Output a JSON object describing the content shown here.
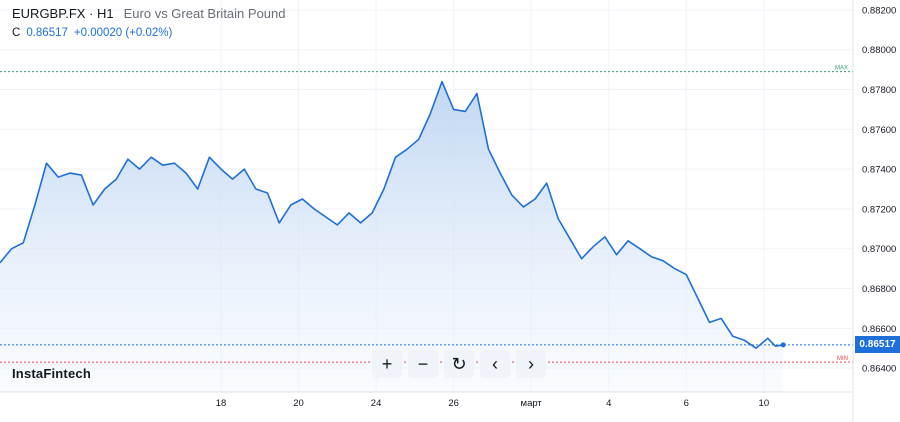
{
  "header": {
    "symbol": "EURGBP.FX · H1",
    "description": "Euro vs Great Britain Pound",
    "close_label": "C",
    "close_value": "0.86517",
    "change": "+0.00020 (+0.02%)"
  },
  "brand": "InstaFintech",
  "toolbar": {
    "zoom_in": "+",
    "zoom_out": "−",
    "reset": "↻",
    "back": "‹",
    "forward": "›"
  },
  "current_price_label": "0.86517",
  "max_label": "MAX",
  "min_label": "MIN",
  "colors": {
    "line": "#1e6fd9",
    "fill_top": "#bcd4f2",
    "max_line": "#2e9e6b",
    "min_line": "#e04b4b"
  },
  "chart_data": {
    "type": "area",
    "y_ticks": [
      "0.88200",
      "0.88000",
      "0.87800",
      "0.87600",
      "0.87400",
      "0.87200",
      "0.87000",
      "0.86800",
      "0.86600",
      "0.86400"
    ],
    "y_tick_values": [
      0.882,
      0.88,
      0.878,
      0.876,
      0.874,
      0.872,
      0.87,
      0.868,
      0.866,
      0.864
    ],
    "ylim": [
      0.8628,
      0.8825
    ],
    "x_ticks": [
      "18",
      "20",
      "24",
      "26",
      "март",
      "4",
      "6",
      "10"
    ],
    "x_tick_positions": [
      5.7,
      7.7,
      9.7,
      11.7,
      13.7,
      15.7,
      17.7,
      19.7
    ],
    "xlim": [
      0,
      22
    ],
    "max_level": 0.8789,
    "min_level": 0.8643,
    "current_level": 0.86517,
    "x": [
      0.0,
      0.3,
      0.6,
      0.9,
      1.2,
      1.5,
      1.8,
      2.1,
      2.4,
      2.7,
      3.0,
      3.3,
      3.6,
      3.9,
      4.2,
      4.5,
      4.8,
      5.1,
      5.4,
      5.7,
      6.0,
      6.3,
      6.6,
      6.9,
      7.2,
      7.5,
      7.8,
      8.1,
      8.4,
      8.7,
      9.0,
      9.3,
      9.6,
      9.9,
      10.2,
      10.5,
      10.8,
      11.1,
      11.4,
      11.7,
      12.0,
      12.3,
      12.6,
      12.9,
      13.2,
      13.5,
      13.8,
      14.1,
      14.4,
      14.7,
      15.0,
      15.3,
      15.6,
      15.9,
      16.2,
      16.5,
      16.8,
      17.1,
      17.4,
      17.7,
      18.0,
      18.3,
      18.6,
      18.9,
      19.2,
      19.5,
      19.8,
      20.0,
      20.2
    ],
    "y": [
      0.8693,
      0.87,
      0.8703,
      0.8722,
      0.8743,
      0.8736,
      0.8738,
      0.8737,
      0.8722,
      0.873,
      0.8735,
      0.8745,
      0.874,
      0.8746,
      0.8742,
      0.8743,
      0.8738,
      0.873,
      0.8746,
      0.874,
      0.8735,
      0.874,
      0.873,
      0.8728,
      0.8713,
      0.8722,
      0.8725,
      0.872,
      0.8716,
      0.8712,
      0.8718,
      0.8713,
      0.8718,
      0.873,
      0.8746,
      0.875,
      0.8755,
      0.8768,
      0.8784,
      0.877,
      0.8769,
      0.8778,
      0.875,
      0.8738,
      0.8727,
      0.8721,
      0.8725,
      0.8733,
      0.8715,
      0.8705,
      0.8695,
      0.8701,
      0.8706,
      0.8697,
      0.8704,
      0.87,
      0.8696,
      0.8694,
      0.869,
      0.8687,
      0.8675,
      0.8663,
      0.8665,
      0.8656,
      0.8654,
      0.865,
      0.8655,
      0.8651,
      0.86517
    ]
  }
}
